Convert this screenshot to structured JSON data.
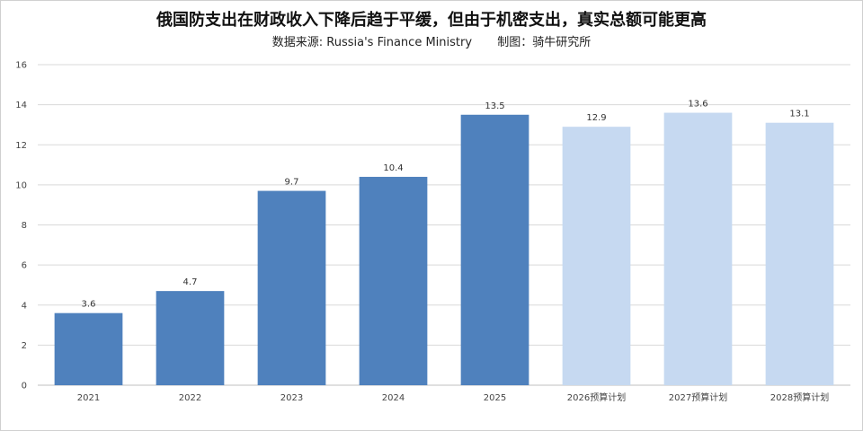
{
  "chart_data": {
    "type": "bar",
    "title": "俄国防支出在财政收入下降后趋于平缓，但由于机密支出，真实总额可能更高",
    "subtitle_source": "数据来源: Russia's Finance Ministry",
    "subtitle_author": "制图：骑牛研究所",
    "categories": [
      "2021",
      "2022",
      "2023",
      "2024",
      "2025",
      "2026预算计划",
      "2027预算计划",
      "2028预算计划"
    ],
    "values": [
      3.6,
      4.7,
      9.7,
      10.4,
      13.5,
      12.9,
      13.6,
      13.1
    ],
    "bar_kind": [
      "actual",
      "actual",
      "actual",
      "actual",
      "actual",
      "plan",
      "plan",
      "plan"
    ],
    "colors": {
      "actual": "#4f81bd",
      "plan": "#c6d9f1",
      "grid": "#d9d9d9"
    },
    "ylim": [
      0,
      16
    ],
    "yticks": [
      0,
      2,
      4,
      6,
      8,
      10,
      12,
      14,
      16
    ],
    "grid": true,
    "xlabel": "",
    "ylabel": ""
  }
}
